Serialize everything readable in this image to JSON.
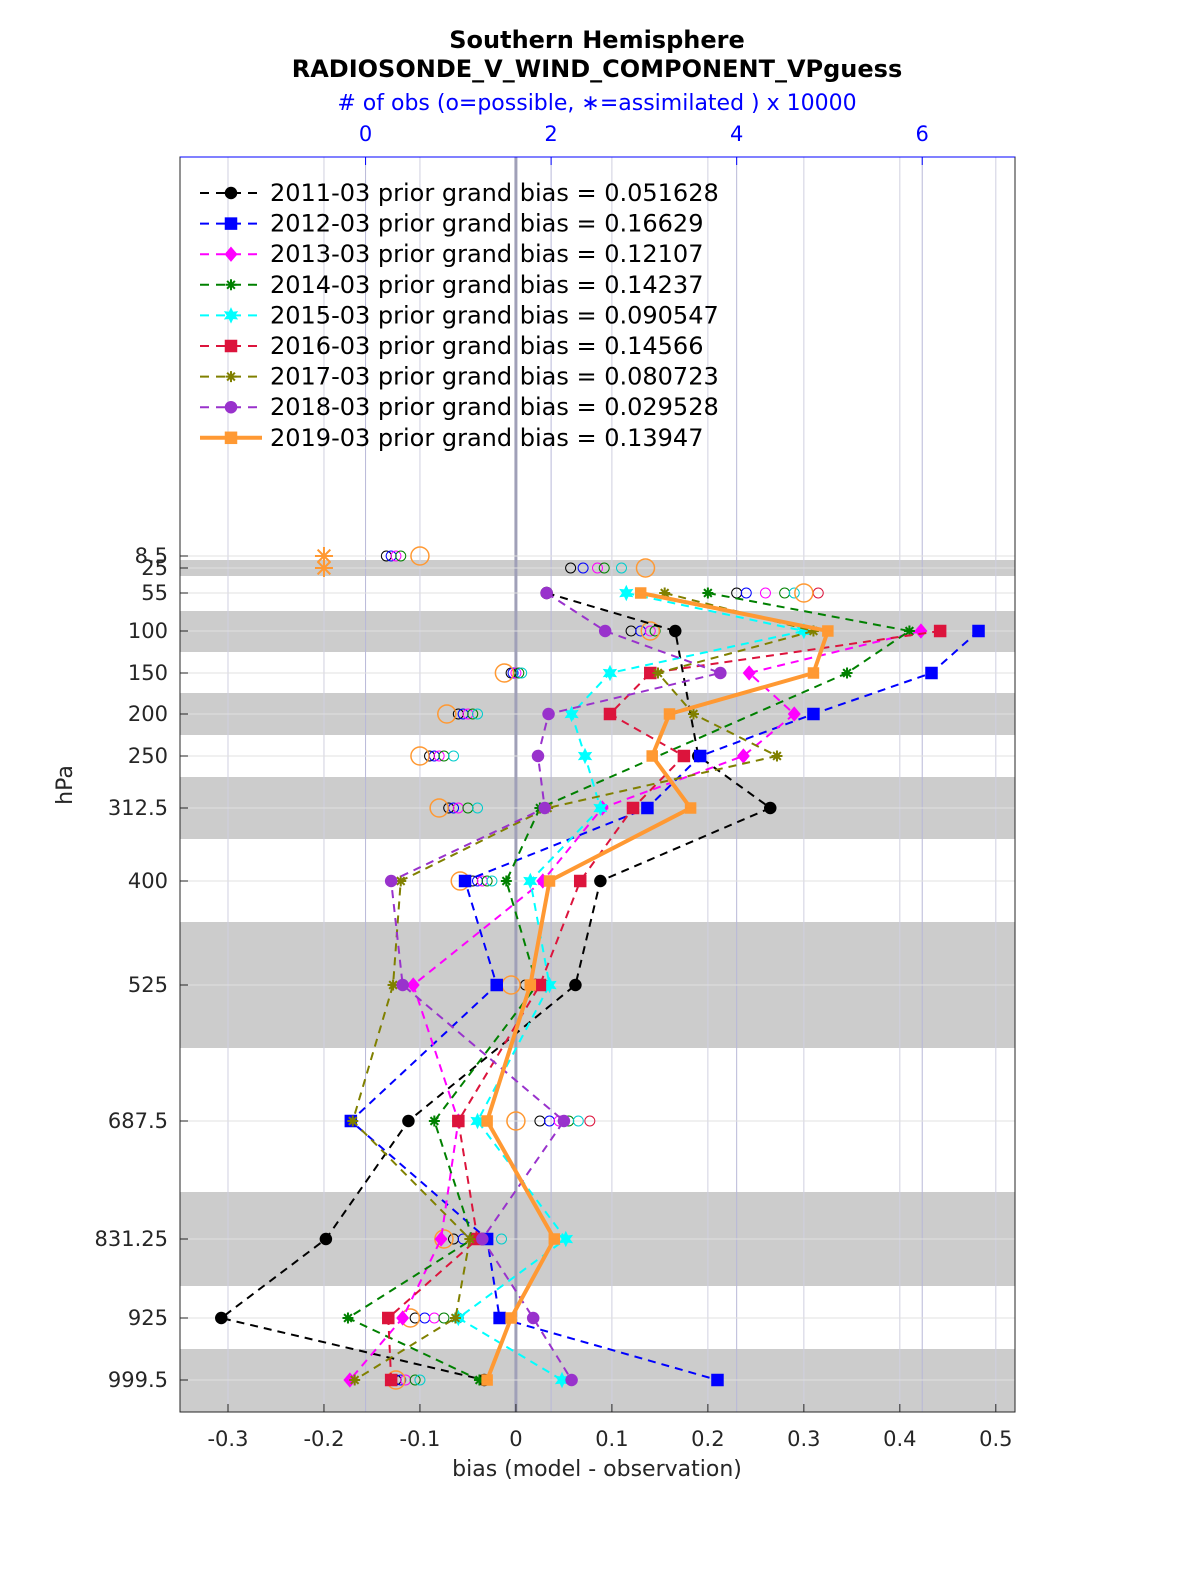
{
  "chart_data": {
    "type": "line",
    "title": "Southern Hemisphere",
    "subtitle": "RADIOSONDE_V_WIND_COMPONENT_VPguess",
    "xlabel": "bias (model - observation)",
    "ylabel": "hPa",
    "top_axis_label": "# of obs (o=possible, ∗=assimilated ) x 10000",
    "xlim": [
      -0.35,
      0.52
    ],
    "top_xlim": [
      -2,
      7
    ],
    "x_ticks": [
      "-0.3",
      "-0.2",
      "-0.1",
      "0",
      "0.1",
      "0.2",
      "0.3",
      "0.4",
      "0.5"
    ],
    "top_ticks": [
      "0",
      "2",
      "4",
      "6"
    ],
    "levels": [
      8.5,
      25,
      55,
      100,
      150,
      200,
      250,
      312.5,
      400,
      525,
      687.5,
      831.25,
      925,
      999.5
    ],
    "level_labels": [
      "8.5",
      "25",
      "55",
      "100",
      "150",
      "200",
      "250",
      "312.5",
      "400",
      "525",
      "687.5",
      "831.25",
      "925",
      "999.5"
    ],
    "grid": true,
    "legend_position": "top-left",
    "colors": {
      "axis_top": "#0000ff",
      "band": "#cccccc",
      "zero_line": "#a0a0b8"
    },
    "series": [
      {
        "name": "2011-03 prior grand bias = 0.051628",
        "color": "#000000",
        "marker": "circle",
        "style": "dashed",
        "values": [
          null,
          null,
          0.032,
          0.166,
          null,
          null,
          0.19,
          0.265,
          0.088,
          0.062,
          -0.112,
          -0.198,
          -0.307,
          -0.033
        ]
      },
      {
        "name": "2012-03 prior grand bias = 0.16629",
        "color": "#0000ff",
        "marker": "square",
        "style": "dashed",
        "values": [
          null,
          null,
          null,
          0.482,
          0.433,
          0.31,
          0.192,
          0.137,
          -0.053,
          -0.02,
          -0.172,
          -0.03,
          -0.017,
          0.21
        ]
      },
      {
        "name": "2013-03 prior grand bias = 0.12107",
        "color": "#ff00ff",
        "marker": "diamond",
        "style": "dashed",
        "values": [
          null,
          null,
          null,
          0.422,
          0.243,
          0.29,
          0.237,
          0.09,
          0.028,
          -0.107,
          -0.06,
          -0.078,
          -0.118,
          -0.173
        ]
      },
      {
        "name": "2014-03 prior grand bias = 0.14237",
        "color": "#008000",
        "marker": "star",
        "style": "dashed",
        "values": [
          null,
          null,
          0.2,
          0.41,
          0.345,
          null,
          null,
          0.025,
          -0.01,
          0.022,
          -0.085,
          -0.045,
          -0.175,
          -0.038
        ]
      },
      {
        "name": "2015-03 prior grand bias = 0.090547",
        "color": "#00ffff",
        "marker": "hexagram",
        "style": "dashed",
        "values": [
          null,
          null,
          0.115,
          0.3,
          0.098,
          0.058,
          0.072,
          0.088,
          0.015,
          0.035,
          -0.04,
          0.052,
          -0.06,
          0.048
        ]
      },
      {
        "name": "2016-03 prior grand bias = 0.14566",
        "color": "#dc143c",
        "marker": "square",
        "style": "dashed",
        "values": [
          null,
          null,
          null,
          0.442,
          0.14,
          0.098,
          0.175,
          0.122,
          0.067,
          0.025,
          -0.06,
          -0.04,
          -0.133,
          -0.13
        ]
      },
      {
        "name": "2017-03 prior grand bias = 0.080723",
        "color": "#808000",
        "marker": "star",
        "style": "dashed",
        "values": [
          null,
          null,
          0.155,
          0.31,
          0.148,
          0.185,
          0.272,
          0.033,
          -0.12,
          -0.128,
          -0.17,
          -0.048,
          -0.063,
          -0.168
        ]
      },
      {
        "name": "2018-03 prior grand bias = 0.029528",
        "color": "#9932cc",
        "marker": "circle",
        "style": "dashed",
        "values": [
          null,
          null,
          0.032,
          0.093,
          0.213,
          0.034,
          0.023,
          0.03,
          -0.13,
          -0.118,
          0.05,
          -0.035,
          0.018,
          0.058
        ]
      },
      {
        "name": "2019-03 prior grand bias = 0.13947",
        "color": "#ff9933",
        "marker": "square",
        "style": "solid",
        "values": [
          null,
          null,
          0.13,
          0.325,
          0.31,
          0.16,
          0.142,
          0.182,
          0.035,
          0.015,
          -0.03,
          0.04,
          -0.005,
          -0.03
        ]
      }
    ]
  }
}
